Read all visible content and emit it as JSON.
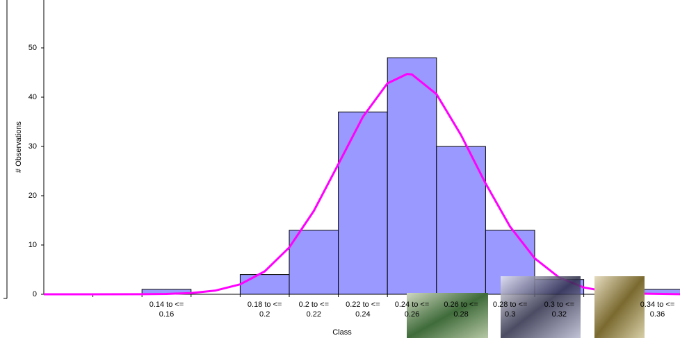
{
  "chart_data": {
    "type": "bar",
    "y_label": "# Observations",
    "x_label": "Class",
    "categories": [
      null,
      null,
      "0.14 to <= 0.16",
      null,
      "0.18 to <= 0.2",
      "0.2 to <= 0.22",
      "0.22 to <= 0.24",
      "0.24 to <= 0.26",
      "0.26 to <= 0.28",
      "0.28 to <= 0.3",
      "0.3 to <= 0.32",
      null,
      "0.34 to <= 0.36"
    ],
    "values": [
      0,
      0,
      1,
      0,
      4,
      13,
      37,
      48,
      30,
      13,
      3,
      0,
      1
    ],
    "color": "#9999ff",
    "bin_start": 0.1,
    "bin_width": 0.02,
    "curve": {
      "color": "#ff00ff",
      "x": [
        0.1,
        0.12,
        0.14,
        0.15,
        0.16,
        0.17,
        0.18,
        0.19,
        0.2,
        0.21,
        0.22,
        0.23,
        0.24,
        0.248,
        0.25,
        0.26,
        0.27,
        0.28,
        0.29,
        0.3,
        0.31,
        0.32,
        0.33,
        0.34,
        0.36
      ],
      "values": [
        0,
        0.0007,
        0.018,
        0.07,
        0.25,
        0.76,
        2.01,
        4.65,
        9.5,
        16.9,
        26.4,
        36.0,
        42.8,
        44.7,
        44.6,
        40.6,
        32.3,
        22.5,
        13.7,
        7.3,
        3.39,
        1.38,
        0.49,
        0.15,
        0.01
      ]
    },
    "ylim": [
      0,
      60
    ],
    "yticks": [
      0,
      10,
      20,
      30,
      40,
      50
    ]
  }
}
